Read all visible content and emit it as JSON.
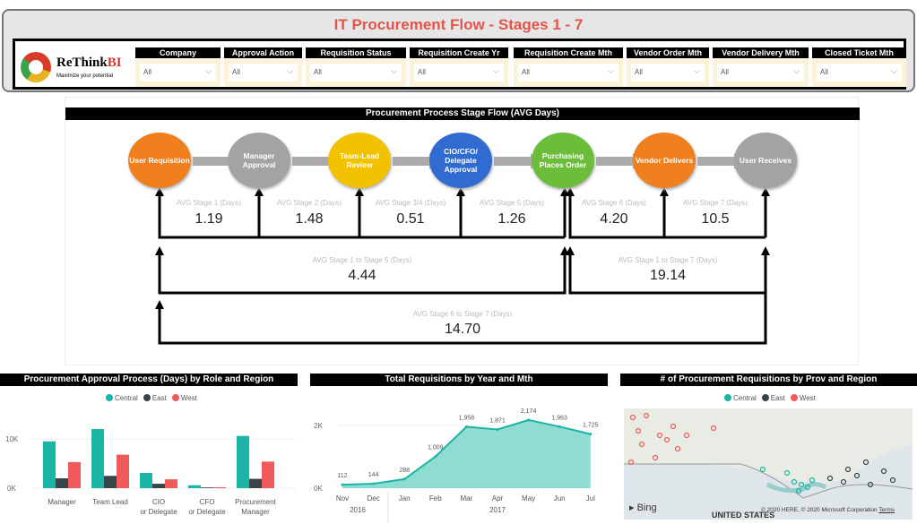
{
  "header": {
    "title": "IT Procurement Flow  -  Stages 1 - 7",
    "logo_name": "ReThink",
    "logo_accent": "BI",
    "logo_tagline": "Maximize your potential"
  },
  "filters": [
    {
      "label": "Company",
      "value": "All"
    },
    {
      "label": "Approval Action",
      "value": "All"
    },
    {
      "label": "Requisition Status",
      "value": "All"
    },
    {
      "label": "Requisition Create Yr",
      "value": "All"
    },
    {
      "label": "Requisition Create Mth",
      "value": "All"
    },
    {
      "label": "Vendor Order Mth",
      "value": "All"
    },
    {
      "label": "Vendor Delivery Mth",
      "value": "All"
    },
    {
      "label": "Closed Ticket Mth",
      "value": "All"
    }
  ],
  "flow": {
    "title": "Procurement Process Stage Flow (AVG Days)",
    "stages": [
      {
        "label": "User Requisition",
        "color": "#f07f1e"
      },
      {
        "label": "Manager Approval",
        "color": "#a3a3a3"
      },
      {
        "label": "Team-Lead Review",
        "color": "#f2c200"
      },
      {
        "label": "CIO/CFO/ Delegate Approval",
        "color": "#2f6bd0"
      },
      {
        "label": "Purchasing Places Order",
        "color": "#6cbd3a"
      },
      {
        "label": "Vendor Delivers",
        "color": "#f07f1e"
      },
      {
        "label": "User Receives",
        "color": "#a3a3a3"
      }
    ],
    "metrics": [
      {
        "label": "AVG Stage 1 (Days)",
        "value": "1.19"
      },
      {
        "label": "AVG Stage 2 (Days)",
        "value": "1.48"
      },
      {
        "label": "AVG Stage 3/4 (Days)",
        "value": "0.51"
      },
      {
        "label": "AVG Stage 5 (Days)",
        "value": "1.26"
      },
      {
        "label": "AVG Stage 6 (Days)",
        "value": "4.20"
      },
      {
        "label": "AVG Stage 7 (Days)",
        "value": "10.5"
      }
    ],
    "totals": [
      {
        "label": "AVG Stage 1 to Stage 5 (Days)",
        "value": "4.44"
      },
      {
        "label": "AVG Stage 1 to Stage 7 (Days)",
        "value": "19.14"
      },
      {
        "label": "AVG Stage 6 to Stage 7 (Days)",
        "value": "14.70"
      }
    ]
  },
  "chart_data": [
    {
      "type": "bar",
      "title": "Procurement Approval Process (Days) by Role and Region",
      "categories": [
        "Manager",
        "Team Lead",
        "CIO or Delegate",
        "CFO or Delegate",
        "Procurement Manager"
      ],
      "series": [
        {
          "name": "Central",
          "color": "#1ab5a5",
          "values": [
            9500,
            12000,
            3100,
            600,
            10600
          ]
        },
        {
          "name": "East",
          "color": "#374649",
          "values": [
            2000,
            2500,
            900,
            150,
            1900
          ]
        },
        {
          "name": "West",
          "color": "#f05a5a",
          "values": [
            5300,
            6800,
            1800,
            200,
            5400
          ]
        }
      ],
      "yticks": [
        "0K",
        "10K"
      ],
      "ylim": [
        0,
        13000
      ]
    },
    {
      "type": "area",
      "title": "Total Requisitions by Year and Mth",
      "categories": [
        "Nov",
        "Dec",
        "Jan",
        "Feb",
        "Mar",
        "Apr",
        "May",
        "Jun",
        "Jul"
      ],
      "years": [
        "2016",
        "2017"
      ],
      "values": [
        112,
        144,
        288,
        1009,
        1958,
        1871,
        2174,
        1963,
        1725
      ],
      "labels": [
        "112",
        "144",
        "288",
        "1,009",
        "1,958",
        "1,871",
        "2,174",
        "1,963",
        "1,725"
      ],
      "yticks": [
        "0K",
        "2K"
      ],
      "ylim": [
        0,
        2600
      ]
    }
  ],
  "map": {
    "title": "# of Procurement Requisitions by Prov and Region",
    "legend": [
      "Central",
      "East",
      "West"
    ],
    "bing": "Bing",
    "country": "UNITED STATES",
    "copyright": "© 2020 HERE, © 2020 Microsoft Corporation",
    "terms": "Terms"
  }
}
